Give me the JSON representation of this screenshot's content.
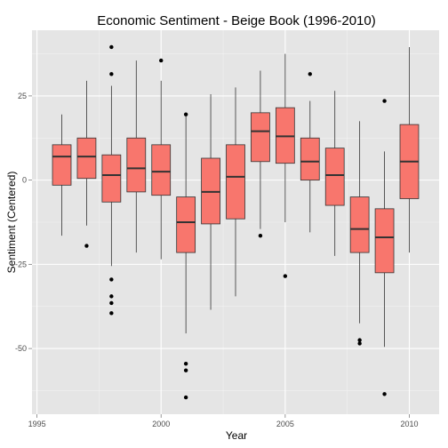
{
  "chart_data": {
    "type": "boxplot",
    "title": "Economic Sentiment - Beige Book (1996-2010)",
    "xlabel": "Year",
    "ylabel": "Sentiment (Centered)",
    "xlim": [
      1994.8,
      2011.2
    ],
    "ylim": [
      -69.5,
      44.5
    ],
    "x_ticks": [
      1995,
      2000,
      2005,
      2010
    ],
    "x_tick_labels": [
      "1995",
      "2000",
      "2005",
      "2010"
    ],
    "y_ticks": [
      -50,
      -25,
      0,
      25
    ],
    "y_tick_labels": [
      "-50",
      "-25",
      "0",
      "25"
    ],
    "grid": true,
    "legend": "none",
    "series": [
      {
        "x": 1996,
        "q1": -1.5,
        "median": 7,
        "q3": 10.5,
        "whisker_low": -16.5,
        "whisker_high": 19.5,
        "outliers": []
      },
      {
        "x": 1997,
        "q1": 0.5,
        "median": 7,
        "q3": 12.5,
        "whisker_low": -13.5,
        "whisker_high": 29.5,
        "outliers": [
          -19.5
        ]
      },
      {
        "x": 1998,
        "q1": -6.5,
        "median": 1.5,
        "q3": 7.5,
        "whisker_low": -25.5,
        "whisker_high": 28,
        "outliers": [
          39.5,
          31.5,
          -29.5,
          -34.5,
          -36.5,
          -39.5
        ]
      },
      {
        "x": 1999,
        "q1": -3.5,
        "median": 3.5,
        "q3": 12.5,
        "whisker_low": -21.5,
        "whisker_high": 35.5,
        "outliers": []
      },
      {
        "x": 2000,
        "q1": -4.5,
        "median": 2.5,
        "q3": 10.5,
        "whisker_low": -23.5,
        "whisker_high": 29.5,
        "outliers": [
          35.5
        ]
      },
      {
        "x": 2001,
        "q1": -21.5,
        "median": -12.5,
        "q3": -5,
        "whisker_low": -45.5,
        "whisker_high": 19.5,
        "outliers": [
          19.5,
          -54.5,
          -56.5,
          -64.5
        ]
      },
      {
        "x": 2002,
        "q1": -13,
        "median": -3.5,
        "q3": 6.5,
        "whisker_low": -38.5,
        "whisker_high": 25.5,
        "outliers": []
      },
      {
        "x": 2003,
        "q1": -11.5,
        "median": 1,
        "q3": 10.5,
        "whisker_low": -34.5,
        "whisker_high": 27.5,
        "outliers": []
      },
      {
        "x": 2004,
        "q1": 5.5,
        "median": 14.5,
        "q3": 20,
        "whisker_low": -14.5,
        "whisker_high": 32.5,
        "outliers": [
          -16.5
        ]
      },
      {
        "x": 2005,
        "q1": 5,
        "median": 13,
        "q3": 21.5,
        "whisker_low": -12.5,
        "whisker_high": 37.5,
        "outliers": [
          -28.5
        ]
      },
      {
        "x": 2006,
        "q1": 0,
        "median": 5.5,
        "q3": 12.5,
        "whisker_low": -15.5,
        "whisker_high": 23.5,
        "outliers": [
          31.5
        ]
      },
      {
        "x": 2007,
        "q1": -7.5,
        "median": 1.5,
        "q3": 9.5,
        "whisker_low": -22.5,
        "whisker_high": 26.5,
        "outliers": []
      },
      {
        "x": 2008,
        "q1": -21.5,
        "median": -14.5,
        "q3": -5,
        "whisker_low": -42.5,
        "whisker_high": 17.5,
        "outliers": [
          -47.5,
          -48.5
        ]
      },
      {
        "x": 2009,
        "q1": -27.5,
        "median": -17,
        "q3": -8.5,
        "whisker_low": -49.5,
        "whisker_high": 8.5,
        "outliers": [
          23.5,
          -63.5
        ]
      },
      {
        "x": 2010,
        "q1": -5.5,
        "median": 5.5,
        "q3": 16.5,
        "whisker_low": -21.5,
        "whisker_high": 39.5,
        "outliers": []
      }
    ],
    "colors": {
      "box_fill": "#F8766D",
      "box_line": "#333333",
      "panel_bg": "#E5E5E5",
      "grid_major": "#FFFFFF",
      "grid_minor": "#F2F2F2",
      "point": "#000000"
    }
  }
}
